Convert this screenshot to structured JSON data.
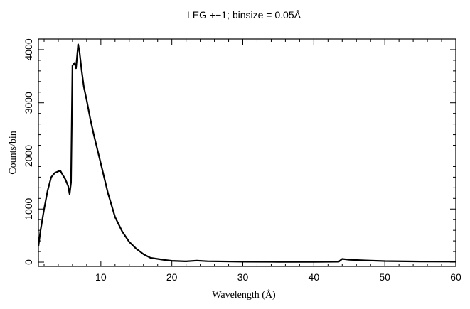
{
  "chart_data": {
    "type": "line",
    "title": "LEG +−1; binsize = 0.05Å",
    "xlabel": "Wavelength (Å)",
    "ylabel": "Counts/bin",
    "xlim": [
      1.2,
      60
    ],
    "ylim": [
      -80,
      4200
    ],
    "xticks": [
      10,
      20,
      30,
      40,
      50,
      60
    ],
    "yticks": [
      0,
      1000,
      2000,
      3000,
      4000
    ],
    "grid": false,
    "series": [
      {
        "values": [
          [
            1.2,
            300
          ],
          [
            1.5,
            600
          ],
          [
            2.0,
            1000
          ],
          [
            2.5,
            1350
          ],
          [
            3.0,
            1600
          ],
          [
            3.5,
            1680
          ],
          [
            4.0,
            1710
          ],
          [
            4.3,
            1720
          ],
          [
            4.6,
            1650
          ],
          [
            5.0,
            1560
          ],
          [
            5.4,
            1430
          ],
          [
            5.6,
            1280
          ],
          [
            5.8,
            1500
          ],
          [
            6.0,
            3700
          ],
          [
            6.3,
            3750
          ],
          [
            6.5,
            3650
          ],
          [
            6.8,
            4100
          ],
          [
            7.0,
            3950
          ],
          [
            7.3,
            3600
          ],
          [
            7.6,
            3300
          ],
          [
            8.0,
            3050
          ],
          [
            8.5,
            2700
          ],
          [
            9.0,
            2400
          ],
          [
            10.0,
            1850
          ],
          [
            11.0,
            1300
          ],
          [
            12.0,
            850
          ],
          [
            13.0,
            580
          ],
          [
            14.0,
            380
          ],
          [
            15.0,
            250
          ],
          [
            16.0,
            150
          ],
          [
            17.0,
            80
          ],
          [
            18.0,
            60
          ],
          [
            19.0,
            40
          ],
          [
            20.0,
            25
          ],
          [
            22.0,
            15
          ],
          [
            23.5,
            30
          ],
          [
            25.0,
            18
          ],
          [
            30.0,
            8
          ],
          [
            35.0,
            6
          ],
          [
            40.0,
            6
          ],
          [
            43.5,
            8
          ],
          [
            44.0,
            60
          ],
          [
            45.0,
            45
          ],
          [
            48.0,
            30
          ],
          [
            50.0,
            20
          ],
          [
            55.0,
            12
          ],
          [
            60.0,
            10
          ]
        ]
      }
    ]
  }
}
